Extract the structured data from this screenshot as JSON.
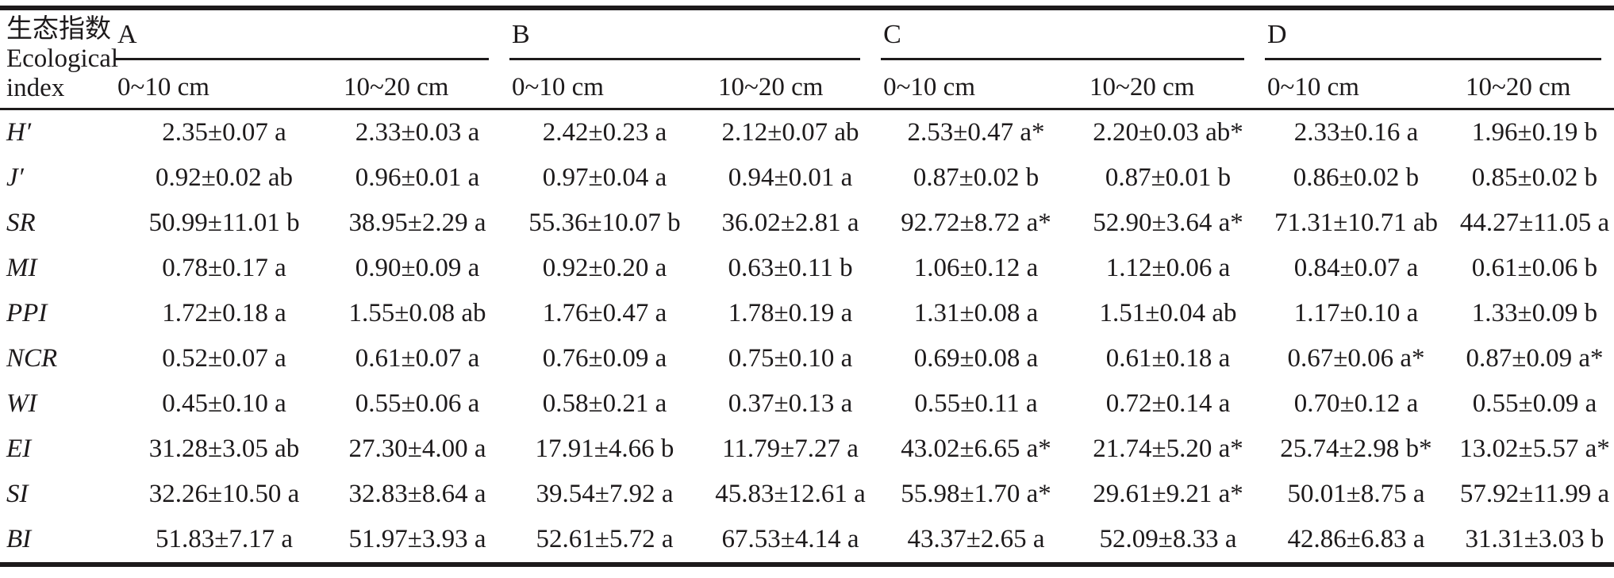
{
  "page": {
    "background": "#ffffff",
    "text_color": "#1d1a1b",
    "rule_color": "#1d1a1b"
  },
  "table": {
    "corner_header": {
      "line1": "生态指数",
      "line2": "Ecological",
      "line3": "index"
    },
    "groups": [
      {
        "label": "A",
        "subcolumns": [
          "0~10 cm",
          "10~20 cm"
        ]
      },
      {
        "label": "B",
        "subcolumns": [
          "0~10 cm",
          "10~20 cm"
        ]
      },
      {
        "label": "C",
        "subcolumns": [
          "0~10 cm",
          "10~20 cm"
        ]
      },
      {
        "label": "D",
        "subcolumns": [
          "0~10 cm",
          "10~20 cm"
        ]
      }
    ],
    "rows": [
      {
        "index": "H′",
        "values": [
          "2.35±0.07 a",
          "2.33±0.03 a",
          "2.42±0.23 a",
          "2.12±0.07 ab",
          "2.53±0.47 a*",
          "2.20±0.03 ab*",
          "2.33±0.16 a",
          "1.96±0.19 b"
        ]
      },
      {
        "index": "J′",
        "values": [
          "0.92±0.02 ab",
          "0.96±0.01 a",
          "0.97±0.04 a",
          "0.94±0.01 a",
          "0.87±0.02 b",
          "0.87±0.01 b",
          "0.86±0.02 b",
          "0.85±0.02 b"
        ]
      },
      {
        "index": "SR",
        "values": [
          "50.99±11.01 b",
          "38.95±2.29 a",
          "55.36±10.07 b",
          "36.02±2.81 a",
          "92.72±8.72 a*",
          "52.90±3.64 a*",
          "71.31±10.71 ab",
          "44.27±11.05 a"
        ]
      },
      {
        "index": "MI",
        "values": [
          "0.78±0.17 a",
          "0.90±0.09 a",
          "0.92±0.20 a",
          "0.63±0.11 b",
          "1.06±0.12 a",
          "1.12±0.06 a",
          "0.84±0.07 a",
          "0.61±0.06 b"
        ]
      },
      {
        "index": "PPI",
        "values": [
          "1.72±0.18 a",
          "1.55±0.08 ab",
          "1.76±0.47 a",
          "1.78±0.19 a",
          "1.31±0.08 a",
          "1.51±0.04 ab",
          "1.17±0.10 a",
          "1.33±0.09 b"
        ]
      },
      {
        "index": "NCR",
        "values": [
          "0.52±0.07 a",
          "0.61±0.07 a",
          "0.76±0.09 a",
          "0.75±0.10 a",
          "0.69±0.08 a",
          "0.61±0.18 a",
          "0.67±0.06 a*",
          "0.87±0.09 a*"
        ]
      },
      {
        "index": "WI",
        "values": [
          "0.45±0.10 a",
          "0.55±0.06 a",
          "0.58±0.21 a",
          "0.37±0.13 a",
          "0.55±0.11 a",
          "0.72±0.14 a",
          "0.70±0.12 a",
          "0.55±0.09 a"
        ]
      },
      {
        "index": "EI",
        "values": [
          "31.28±3.05 ab",
          "27.30±4.00 a",
          "17.91±4.66 b",
          "11.79±7.27 a",
          "43.02±6.65 a*",
          "21.74±5.20 a*",
          "25.74±2.98 b*",
          "13.02±5.57 a*"
        ]
      },
      {
        "index": "SI",
        "values": [
          "32.26±10.50 a",
          "32.83±8.64 a",
          "39.54±7.92 a",
          "45.83±12.61 a",
          "55.98±1.70 a*",
          "29.61±9.21 a*",
          "50.01±8.75 a",
          "57.92±11.99 a"
        ]
      },
      {
        "index": "BI",
        "values": [
          "51.83±7.17 a",
          "51.97±3.93 a",
          "52.61±5.72 a",
          "67.53±4.14 a",
          "43.37±2.65 a",
          "52.09±8.33 a",
          "42.86±6.83 a",
          "31.31±3.03 b"
        ]
      }
    ]
  }
}
